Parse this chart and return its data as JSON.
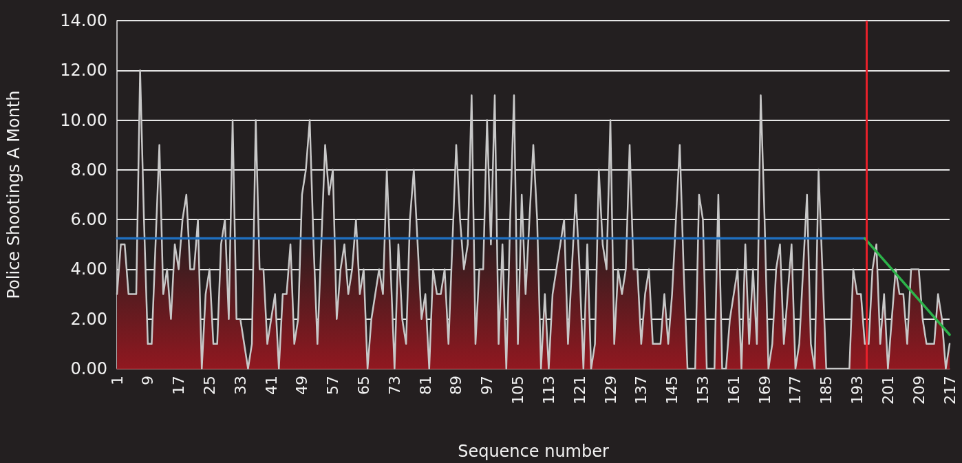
{
  "chart_data": {
    "type": "area",
    "xlabel": "Sequence number",
    "ylabel": "Police Shootings A Month",
    "x": [
      1,
      2,
      3,
      4,
      5,
      6,
      7,
      8,
      9,
      10,
      11,
      12,
      13,
      14,
      15,
      16,
      17,
      18,
      19,
      20,
      21,
      22,
      23,
      24,
      25,
      26,
      27,
      28,
      29,
      30,
      31,
      32,
      33,
      34,
      35,
      36,
      37,
      38,
      39,
      40,
      41,
      42,
      43,
      44,
      45,
      46,
      47,
      48,
      49,
      50,
      51,
      52,
      53,
      54,
      55,
      56,
      57,
      58,
      59,
      60,
      61,
      62,
      63,
      64,
      65,
      66,
      67,
      68,
      69,
      70,
      71,
      72,
      73,
      74,
      75,
      76,
      77,
      78,
      79,
      80,
      81,
      82,
      83,
      84,
      85,
      86,
      87,
      88,
      89,
      90,
      91,
      92,
      93,
      94,
      95,
      96,
      97,
      98,
      99,
      100,
      101,
      102,
      103,
      104,
      105,
      106,
      107,
      108,
      109,
      110,
      111,
      112,
      113,
      114,
      115,
      116,
      117,
      118,
      119,
      120,
      121,
      122,
      123,
      124,
      125,
      126,
      127,
      128,
      129,
      130,
      131,
      132,
      133,
      134,
      135,
      136,
      137,
      138,
      139,
      140,
      141,
      142,
      143,
      144,
      145,
      146,
      147,
      148,
      149,
      150,
      151,
      152,
      153,
      154,
      155,
      156,
      157,
      158,
      159,
      160,
      161,
      162,
      163,
      164,
      165,
      166,
      167,
      168,
      169,
      170,
      171,
      172,
      173,
      174,
      175,
      176,
      177,
      178,
      179,
      180,
      181,
      182,
      183,
      184,
      185,
      186,
      187,
      188,
      189,
      190,
      191,
      192,
      193,
      194,
      195,
      196,
      197,
      198,
      199,
      200,
      201,
      202,
      203,
      204,
      205,
      206,
      207,
      208,
      209,
      210,
      211,
      212,
      213,
      214,
      215,
      216,
      217
    ],
    "series": [
      {
        "color": "#c8c8c8",
        "values": [
          3,
          5,
          5,
          3,
          3,
          3,
          12,
          6,
          1,
          1,
          5,
          9,
          3,
          4,
          2,
          5,
          4,
          6,
          7,
          4,
          4,
          6,
          0,
          3,
          4,
          1,
          1,
          5,
          6,
          2,
          10,
          2,
          2,
          1,
          0,
          1,
          10,
          4,
          4,
          1,
          2,
          3,
          0,
          3,
          3,
          5,
          1,
          2,
          7,
          8,
          10,
          5,
          1,
          5,
          9,
          7,
          8,
          2,
          4,
          5,
          3,
          4,
          6,
          3,
          4,
          0,
          2,
          3,
          4,
          3,
          8,
          4,
          0,
          5,
          2,
          1,
          6,
          8,
          5,
          2,
          3,
          0,
          4,
          3,
          3,
          4,
          1,
          5,
          9,
          6,
          4,
          5,
          11,
          1,
          4,
          4,
          10,
          5,
          11,
          1,
          5,
          0,
          6,
          11,
          1,
          7,
          3,
          6,
          9,
          6,
          0,
          3,
          0,
          3,
          4,
          5,
          6,
          1,
          4,
          7,
          4,
          0,
          5,
          0,
          1,
          8,
          5,
          4,
          10,
          1,
          4,
          3,
          4,
          9,
          4,
          4,
          1,
          3,
          4,
          1,
          1,
          1,
          3,
          1,
          3,
          6,
          9,
          4,
          0,
          0,
          0,
          7,
          6,
          0,
          0,
          0,
          7,
          0,
          0,
          2,
          3,
          4,
          0,
          5,
          1,
          4,
          1,
          11,
          6,
          0,
          1,
          4,
          5,
          1,
          3,
          5,
          0,
          1,
          4,
          7,
          1,
          0,
          8,
          4,
          0,
          0,
          0,
          0,
          0,
          0,
          0,
          4,
          3,
          3,
          1,
          1,
          4,
          5,
          1,
          3,
          0,
          2,
          4,
          3,
          3,
          1,
          4,
          4,
          4,
          2,
          1,
          1,
          1,
          3,
          2,
          0,
          1
        ]
      },
      {
        "type": "line",
        "color": "#1f6fbf",
        "x": [
          1,
          195
        ],
        "values": [
          5.24,
          5.24
        ]
      },
      {
        "type": "line",
        "color": "#2db34a",
        "x": [
          195,
          217
        ],
        "values": [
          5.24,
          1.37
        ]
      }
    ],
    "ref_lines": [
      {
        "axis": "x",
        "value": 195.5,
        "color": "#e8202a"
      }
    ],
    "xlim": [
      1,
      217
    ],
    "xticks": [
      1,
      9,
      17,
      25,
      33,
      41,
      49,
      57,
      65,
      73,
      81,
      89,
      97,
      105,
      113,
      121,
      129,
      137,
      145,
      153,
      161,
      169,
      177,
      185,
      193,
      201,
      209,
      217
    ],
    "ylim": [
      0,
      14
    ],
    "yticks": [
      {
        "value": 0,
        "label": "0.00"
      },
      {
        "value": 2,
        "label": "2.00"
      },
      {
        "value": 4,
        "label": "4.00"
      },
      {
        "value": 6,
        "label": "6.00"
      },
      {
        "value": 8,
        "label": "8.00"
      },
      {
        "value": 10,
        "label": "10.00"
      },
      {
        "value": 12,
        "label": "12.00"
      },
      {
        "value": 14,
        "label": "14.00"
      }
    ],
    "grid": "y",
    "marker": "none",
    "line_style": "solid"
  }
}
